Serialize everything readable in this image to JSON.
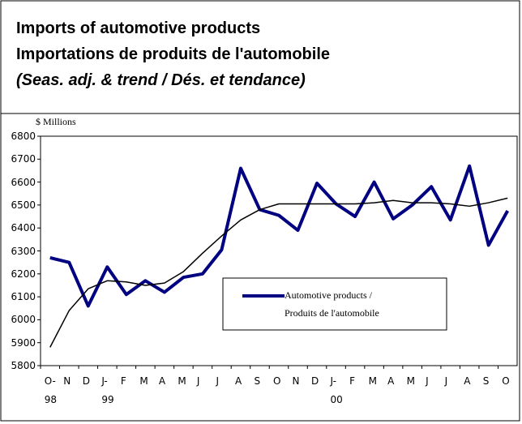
{
  "chart_data": {
    "type": "line",
    "title": "Imports of automotive products",
    "subtitle": "Importations de produits de l'automobile",
    "subtitle2": "(Seas. adj. & trend / Dés. et tendance)",
    "y_axis_label": "$ Millions",
    "categories": [
      "O-\n98",
      "N",
      "D",
      "J-\n99",
      "F",
      "M",
      "A",
      "M",
      "J",
      "J",
      "A",
      "S",
      "O",
      "N",
      "D",
      "J-\n00",
      "F",
      "M",
      "A",
      "M",
      "J",
      "J",
      "A",
      "S",
      "O"
    ],
    "series": [
      {
        "name": "Automotive products /\nProduits de l'automobile",
        "color": "#000080",
        "width": 4,
        "values": [
          6270,
          6250,
          6060,
          6230,
          6110,
          6170,
          6120,
          6185,
          6200,
          6305,
          6660,
          6480,
          6455,
          6390,
          6595,
          6505,
          6450,
          6600,
          6440,
          6500,
          6580,
          6435,
          6670,
          6325,
          6475
        ]
      },
      {
        "color": "#000000",
        "width": 1.5,
        "values": [
          5880,
          6040,
          6135,
          6170,
          6165,
          6150,
          6160,
          6210,
          6290,
          6365,
          6435,
          6480,
          6505,
          6505,
          6505,
          6505,
          6505,
          6510,
          6520,
          6510,
          6510,
          6505,
          6495,
          6510,
          6530
        ]
      }
    ],
    "ylim": [
      5800,
      6800
    ],
    "yticks": [
      5800,
      5900,
      6000,
      6100,
      6200,
      6300,
      6400,
      6500,
      6600,
      6700,
      6800
    ],
    "grid": false
  }
}
